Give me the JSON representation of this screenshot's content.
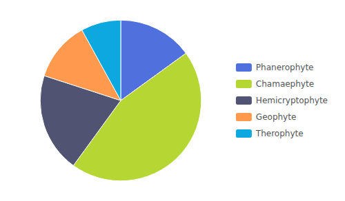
{
  "chart_data": {
    "type": "pie",
    "categories": [
      "Phanerophyte",
      "Chamaephyte",
      "Hemicryptophyte",
      "Geophyte",
      "Therophyte"
    ],
    "values": [
      15,
      45,
      20,
      12,
      8
    ],
    "legend": "right"
  }
}
